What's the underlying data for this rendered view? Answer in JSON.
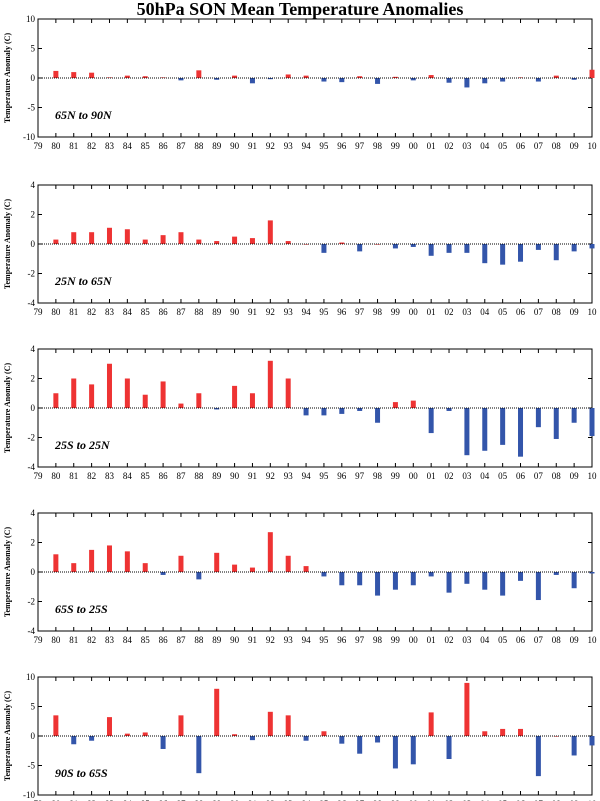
{
  "title": "50hPa SON Mean Temperature Anomalies",
  "colors": {
    "positive": "#ee3333",
    "negative": "#3355aa",
    "frame": "#000000"
  },
  "chart_data": [
    {
      "type": "bar",
      "region": "65N to 90N",
      "ylabel": "Temperature Anomaly (C)",
      "ylim": [
        -10,
        10
      ],
      "yticks": [
        -10,
        -5,
        0,
        5,
        10
      ],
      "grid": false,
      "categories": [
        "79",
        "80",
        "81",
        "82",
        "83",
        "84",
        "85",
        "86",
        "87",
        "88",
        "89",
        "90",
        "91",
        "92",
        "93",
        "94",
        "95",
        "96",
        "97",
        "98",
        "99",
        "00",
        "01",
        "02",
        "03",
        "04",
        "05",
        "06",
        "07",
        "08",
        "09",
        "10"
      ],
      "values": [
        null,
        1.2,
        1.0,
        0.9,
        0.1,
        0.4,
        0.3,
        0.1,
        -0.4,
        1.3,
        -0.3,
        0.4,
        -0.9,
        -0.2,
        0.6,
        0.4,
        -0.6,
        -0.7,
        0.3,
        -1.0,
        0.2,
        -0.4,
        0.5,
        -0.8,
        -1.6,
        -0.9,
        -0.6,
        0.1,
        -0.6,
        0.4,
        -0.3,
        1.4
      ]
    },
    {
      "type": "bar",
      "region": "25N to 65N",
      "ylabel": "Temperature Anomaly (C)",
      "ylim": [
        -4,
        4
      ],
      "yticks": [
        -4,
        -2,
        0,
        2,
        4
      ],
      "grid": false,
      "categories": [
        "79",
        "80",
        "81",
        "82",
        "83",
        "84",
        "85",
        "86",
        "87",
        "88",
        "89",
        "90",
        "91",
        "92",
        "93",
        "94",
        "95",
        "96",
        "97",
        "98",
        "99",
        "00",
        "01",
        "02",
        "03",
        "04",
        "05",
        "06",
        "07",
        "08",
        "09",
        "10"
      ],
      "values": [
        null,
        0.3,
        0.8,
        0.8,
        1.1,
        1.0,
        0.3,
        0.6,
        0.8,
        0.3,
        0.2,
        0.5,
        0.4,
        1.6,
        0.2,
        0.0,
        -0.6,
        0.1,
        -0.5,
        0.0,
        -0.3,
        -0.2,
        -0.8,
        -0.6,
        -0.6,
        -1.3,
        -1.4,
        -1.2,
        -0.4,
        -1.1,
        -0.5,
        -0.3
      ]
    },
    {
      "type": "bar",
      "region": "25S to 25N",
      "ylabel": "Temperature Anomaly (C)",
      "ylim": [
        -4,
        4
      ],
      "yticks": [
        -4,
        -2,
        0,
        2,
        4
      ],
      "grid": false,
      "categories": [
        "79",
        "80",
        "81",
        "82",
        "83",
        "84",
        "85",
        "86",
        "87",
        "88",
        "89",
        "90",
        "91",
        "92",
        "93",
        "94",
        "95",
        "96",
        "97",
        "98",
        "99",
        "00",
        "01",
        "02",
        "03",
        "04",
        "05",
        "06",
        "07",
        "08",
        "09",
        "10"
      ],
      "values": [
        null,
        1.0,
        2.0,
        1.6,
        3.0,
        2.0,
        0.9,
        1.8,
        0.3,
        1.0,
        -0.1,
        1.5,
        1.0,
        3.2,
        2.0,
        -0.5,
        -0.5,
        -0.4,
        -0.2,
        -1.0,
        0.4,
        0.5,
        -1.7,
        -0.2,
        -3.2,
        -2.9,
        -2.5,
        -3.3,
        -1.3,
        -2.1,
        -1.0,
        -1.9
      ]
    },
    {
      "type": "bar",
      "region": "65S to 25S",
      "ylabel": "Temperature Anomaly (C)",
      "ylim": [
        -4,
        4
      ],
      "yticks": [
        -4,
        -2,
        0,
        2,
        4
      ],
      "grid": false,
      "categories": [
        "79",
        "80",
        "81",
        "82",
        "83",
        "84",
        "85",
        "86",
        "87",
        "88",
        "89",
        "90",
        "91",
        "92",
        "93",
        "94",
        "95",
        "96",
        "97",
        "98",
        "99",
        "00",
        "01",
        "02",
        "03",
        "04",
        "05",
        "06",
        "07",
        "08",
        "09",
        "10"
      ],
      "values": [
        null,
        1.2,
        0.6,
        1.5,
        1.8,
        1.4,
        0.6,
        -0.2,
        1.1,
        -0.5,
        1.3,
        0.5,
        0.3,
        2.7,
        1.1,
        0.4,
        -0.3,
        -0.9,
        -0.9,
        -1.6,
        -1.2,
        -0.9,
        -0.3,
        -1.4,
        -0.8,
        -1.2,
        -1.6,
        -0.6,
        -1.9,
        -0.2,
        -1.1,
        -0.1
      ]
    },
    {
      "type": "bar",
      "region": "90S to 65S",
      "ylabel": "Temperature Anomaly (C)",
      "ylim": [
        -10,
        10
      ],
      "yticks": [
        -10,
        -5,
        0,
        5,
        10
      ],
      "grid": false,
      "categories": [
        "79",
        "80",
        "81",
        "82",
        "83",
        "84",
        "85",
        "86",
        "87",
        "88",
        "89",
        "90",
        "91",
        "92",
        "93",
        "94",
        "95",
        "96",
        "97",
        "98",
        "99",
        "00",
        "01",
        "02",
        "03",
        "04",
        "05",
        "06",
        "07",
        "08",
        "09",
        "10"
      ],
      "values": [
        null,
        3.5,
        -1.4,
        -0.8,
        3.2,
        0.4,
        0.6,
        -2.2,
        3.5,
        -6.3,
        8.0,
        0.3,
        -0.7,
        4.1,
        3.5,
        -0.8,
        0.8,
        -1.3,
        -3.0,
        -1.1,
        -5.5,
        -4.8,
        4.0,
        -3.9,
        9.0,
        0.8,
        1.2,
        1.2,
        -6.8,
        0.0,
        -3.3,
        -1.6
      ]
    }
  ]
}
